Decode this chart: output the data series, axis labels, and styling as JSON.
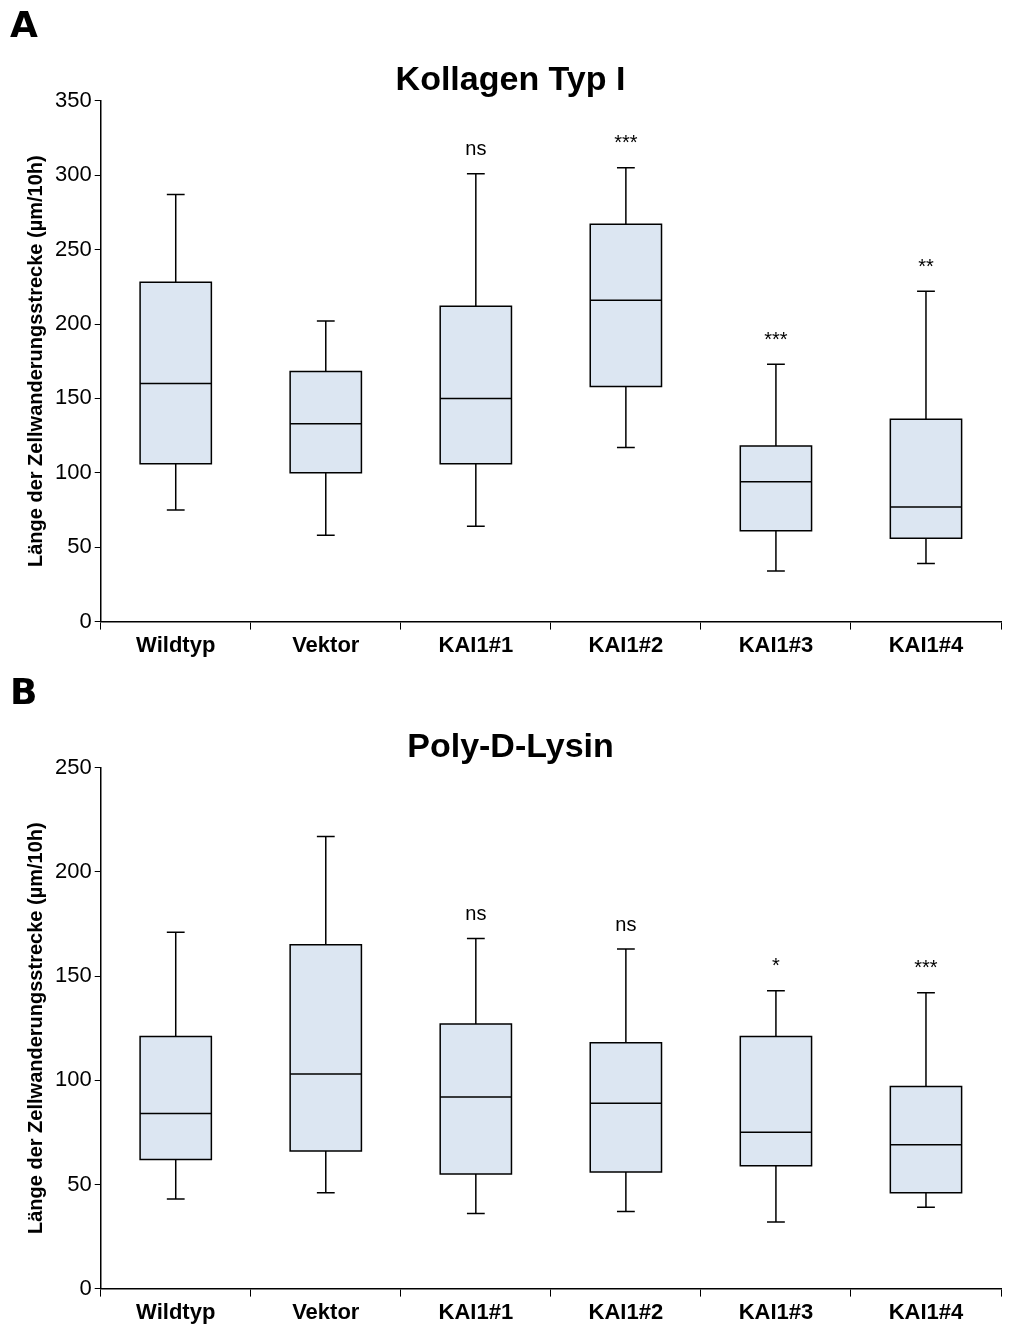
{
  "chart_data": [
    {
      "type": "box",
      "title": "Kollagen Typ I",
      "ylabel": "Länge der Zellwanderungsstrecke (µm/10h)",
      "categories": [
        "Wildtyp",
        "Vektor",
        "KAI1#1",
        "KAI1#2",
        "KAI1#3",
        "KAI1#4"
      ],
      "ylim": [
        0,
        350
      ],
      "yticks": [
        0,
        50,
        100,
        150,
        200,
        250,
        300,
        350
      ],
      "grid": false,
      "legend": false,
      "series": [
        {
          "color": "#dce6f2",
          "boxes": [
            {
              "low": 75,
              "q1": 106,
              "median": 160,
              "q3": 228,
              "high": 287
            },
            {
              "low": 58,
              "q1": 100,
              "median": 133,
              "q3": 168,
              "high": 202
            },
            {
              "low": 64,
              "q1": 106,
              "median": 150,
              "q3": 212,
              "high": 301
            },
            {
              "low": 117,
              "q1": 158,
              "median": 216,
              "q3": 267,
              "high": 305
            },
            {
              "low": 34,
              "q1": 61,
              "median": 94,
              "q3": 118,
              "high": 173
            },
            {
              "low": 39,
              "q1": 56,
              "median": 77,
              "q3": 136,
              "high": 222
            }
          ]
        }
      ],
      "annotations": [
        "A",
        {
          "text": "ns",
          "x": "KAI1#1",
          "y": 301
        },
        {
          "text": "***",
          "x": "KAI1#2",
          "y": 305
        },
        {
          "text": "***",
          "x": "KAI1#3",
          "y": 173
        },
        {
          "text": "**",
          "x": "KAI1#4",
          "y": 222
        }
      ]
    },
    {
      "type": "box",
      "title": "Poly-D-Lysin",
      "ylabel": "Länge der Zellwanderungsstrecke (µm/10h)",
      "categories": [
        "Wildtyp",
        "Vektor",
        "KAI1#1",
        "KAI1#2",
        "KAI1#3",
        "KAI1#4"
      ],
      "ylim": [
        0,
        250
      ],
      "yticks": [
        0,
        50,
        100,
        150,
        200,
        250
      ],
      "grid": false,
      "legend": false,
      "series": [
        {
          "color": "#dce6f2",
          "boxes": [
            {
              "low": 43,
              "q1": 62,
              "median": 84,
              "q3": 121,
              "high": 171
            },
            {
              "low": 46,
              "q1": 66,
              "median": 103,
              "q3": 165,
              "high": 217
            },
            {
              "low": 36,
              "q1": 55,
              "median": 92,
              "q3": 127,
              "high": 168
            },
            {
              "low": 37,
              "q1": 56,
              "median": 89,
              "q3": 118,
              "high": 163
            },
            {
              "low": 32,
              "q1": 59,
              "median": 75,
              "q3": 121,
              "high": 143
            },
            {
              "low": 39,
              "q1": 46,
              "median": 69,
              "q3": 97,
              "high": 142
            }
          ]
        }
      ],
      "annotations": [
        "B",
        {
          "text": "ns",
          "x": "KAI1#1",
          "y": 168
        },
        {
          "text": "ns",
          "x": "KAI1#2",
          "y": 163
        },
        {
          "text": "*",
          "x": "KAI1#3",
          "y": 143
        },
        {
          "text": "***",
          "x": "KAI1#4",
          "y": 142
        }
      ]
    }
  ]
}
